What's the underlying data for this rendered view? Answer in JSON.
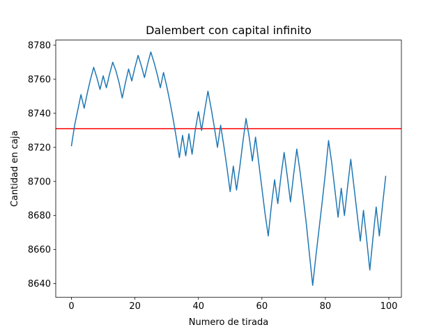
{
  "chart_data": {
    "type": "line",
    "title": "Dalembert con capital infinito",
    "xlabel": "Numero de tirada",
    "ylabel": "Cantidad en caja",
    "xlim": [
      -4.95,
      103.95
    ],
    "ylim": [
      8632,
      8783
    ],
    "xticks": [
      0,
      20,
      40,
      60,
      80,
      100
    ],
    "yticks": [
      8640,
      8660,
      8680,
      8700,
      8720,
      8740,
      8760,
      8780
    ],
    "grid": false,
    "series": [
      {
        "color": "#1f77b4",
        "x": [
          0,
          1,
          2,
          3,
          4,
          5,
          6,
          7,
          8,
          9,
          10,
          11,
          12,
          13,
          14,
          15,
          16,
          17,
          18,
          19,
          20,
          21,
          22,
          23,
          24,
          25,
          26,
          27,
          28,
          29,
          30,
          31,
          32,
          33,
          34,
          35,
          36,
          37,
          38,
          39,
          40,
          41,
          42,
          43,
          44,
          45,
          46,
          47,
          48,
          49,
          50,
          51,
          52,
          53,
          54,
          55,
          56,
          57,
          58,
          59,
          60,
          61,
          62,
          63,
          64,
          65,
          66,
          67,
          68,
          69,
          70,
          71,
          72,
          73,
          74,
          75,
          76,
          77,
          78,
          79,
          80,
          81,
          82,
          83,
          84,
          85,
          86,
          87,
          88,
          89,
          90,
          91,
          92,
          93,
          94,
          95,
          96,
          97,
          98,
          99
        ],
        "values": [
          8721,
          8733,
          8742,
          8751,
          8743,
          8752,
          8760,
          8767,
          8761,
          8754,
          8762,
          8755,
          8763,
          8770,
          8765,
          8758,
          8749,
          8758,
          8766,
          8759,
          8767,
          8774,
          8768,
          8761,
          8769,
          8776,
          8770,
          8763,
          8755,
          8764,
          8756,
          8747,
          8737,
          8726,
          8714,
          8727,
          8715,
          8728,
          8716,
          8730,
          8741,
          8730,
          8742,
          8753,
          8743,
          8732,
          8720,
          8733,
          8721,
          8708,
          8694,
          8709,
          8695,
          8708,
          8723,
          8737,
          8726,
          8712,
          8726,
          8711,
          8696,
          8681,
          8668,
          8686,
          8701,
          8687,
          8703,
          8717,
          8703,
          8688,
          8704,
          8719,
          8706,
          8691,
          8675,
          8657,
          8639,
          8656,
          8672,
          8688,
          8705,
          8724,
          8711,
          8695,
          8679,
          8696,
          8680,
          8697,
          8713,
          8697,
          8681,
          8665,
          8683,
          8666,
          8648,
          8667,
          8685,
          8668,
          8686,
          8703
        ]
      }
    ],
    "hline": {
      "y": 8731,
      "color": "#ff0000"
    }
  }
}
